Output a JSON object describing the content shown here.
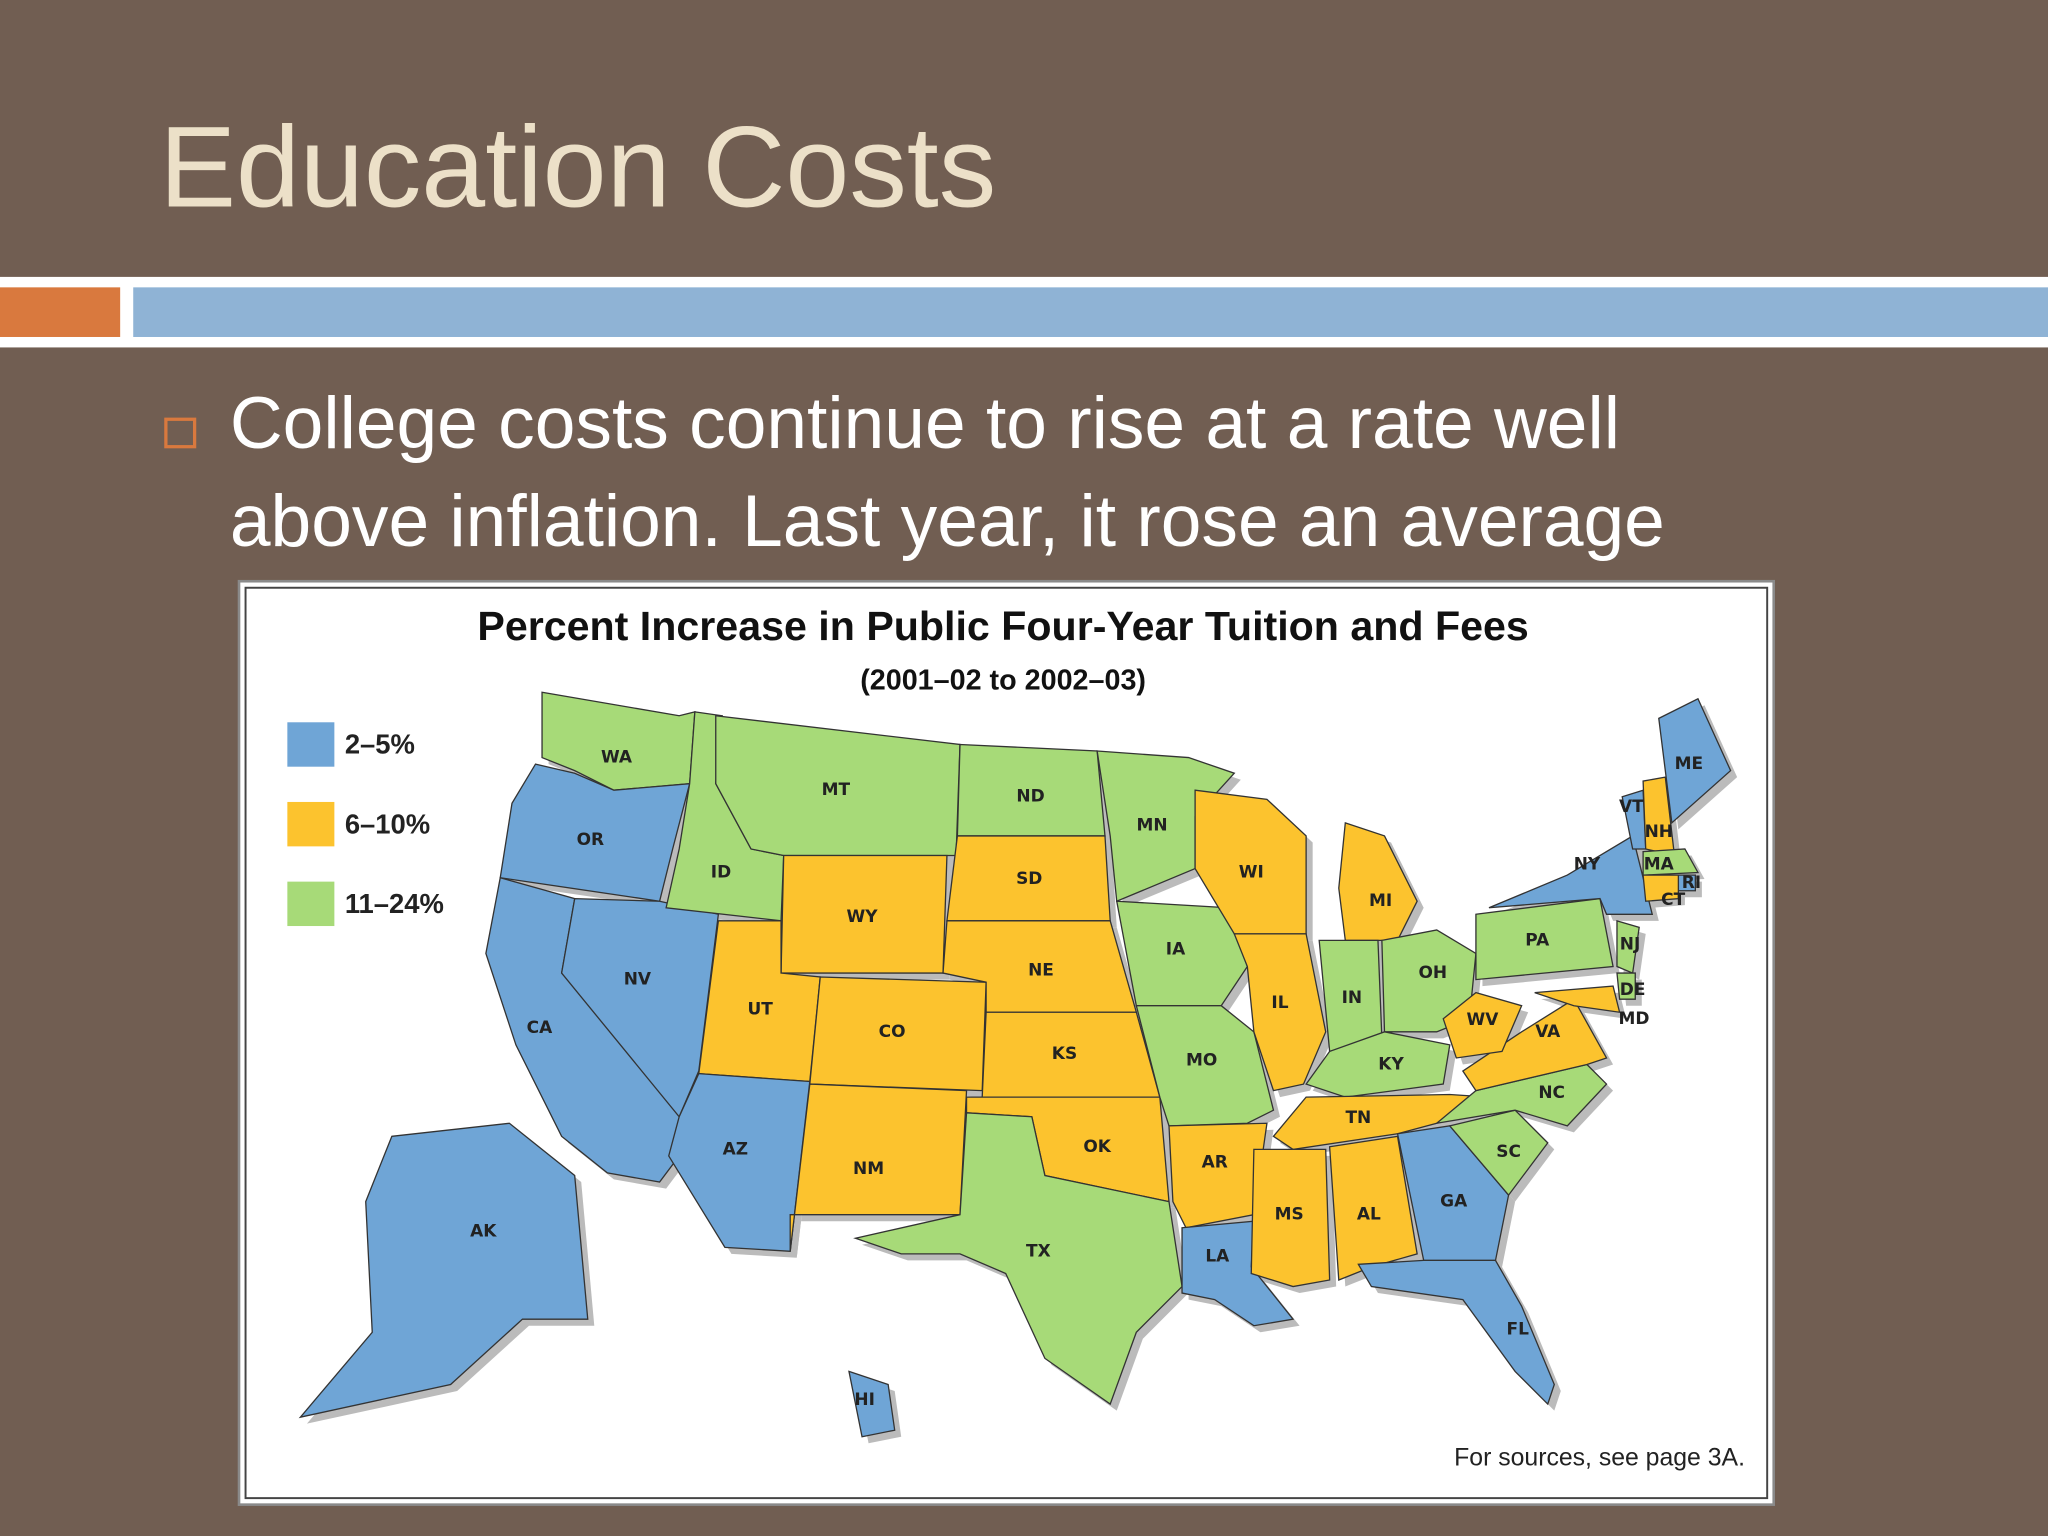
{
  "slide": {
    "title": "Education Costs",
    "bullet_lines": [
      "College costs continue to rise at a rate well",
      "above inflation.  Last year, it rose an average"
    ]
  },
  "map": {
    "title": "Percent Increase in Public Four-Year Tuition and Fees",
    "subtitle": "(2001–02 to 2002–03)",
    "legend": [
      {
        "label": "2–5%",
        "color": "#6fa5d6"
      },
      {
        "label": "6–10%",
        "color": "#fcc32e"
      },
      {
        "label": "11–24%",
        "color": "#a7da78"
      }
    ],
    "states": [
      {
        "label": "WA",
        "range": "11–24%"
      },
      {
        "label": "OR",
        "range": "2–5%"
      },
      {
        "label": "CA",
        "range": "2–5%"
      },
      {
        "label": "NV",
        "range": "2–5%"
      },
      {
        "label": "ID",
        "range": "11–24%"
      },
      {
        "label": "MT",
        "range": "11–24%"
      },
      {
        "label": "WY",
        "range": "6–10%"
      },
      {
        "label": "UT",
        "range": "6–10%"
      },
      {
        "label": "CO",
        "range": "6–10%"
      },
      {
        "label": "AZ",
        "range": "2–5%"
      },
      {
        "label": "NM",
        "range": "6–10%"
      },
      {
        "label": "ND",
        "range": "11–24%"
      },
      {
        "label": "SD",
        "range": "6–10%"
      },
      {
        "label": "NE",
        "range": "6–10%"
      },
      {
        "label": "KS",
        "range": "6–10%"
      },
      {
        "label": "OK",
        "range": "6–10%"
      },
      {
        "label": "TX",
        "range": "11–24%"
      },
      {
        "label": "MN",
        "range": "11–24%"
      },
      {
        "label": "IA",
        "range": "11–24%"
      },
      {
        "label": "MO",
        "range": "11–24%"
      },
      {
        "label": "AR",
        "range": "6–10%"
      },
      {
        "label": "LA",
        "range": "2–5%"
      },
      {
        "label": "WI",
        "range": "6–10%"
      },
      {
        "label": "IL",
        "range": "6–10%"
      },
      {
        "label": "MI",
        "range": "6–10%"
      },
      {
        "label": "IN",
        "range": "11–24%"
      },
      {
        "label": "OH",
        "range": "11–24%"
      },
      {
        "label": "KY",
        "range": "11–24%"
      },
      {
        "label": "TN",
        "range": "6–10%"
      },
      {
        "label": "MS",
        "range": "6–10%"
      },
      {
        "label": "AL",
        "range": "6–10%"
      },
      {
        "label": "GA",
        "range": "2–5%"
      },
      {
        "label": "FL",
        "range": "2–5%"
      },
      {
        "label": "SC",
        "range": "11–24%"
      },
      {
        "label": "NC",
        "range": "11–24%"
      },
      {
        "label": "VA",
        "range": "6–10%"
      },
      {
        "label": "WV",
        "range": "6–10%"
      },
      {
        "label": "PA",
        "range": "11–24%"
      },
      {
        "label": "NY",
        "range": "2–5%"
      },
      {
        "label": "VT",
        "range": "2–5%"
      },
      {
        "label": "NH",
        "range": "6–10%"
      },
      {
        "label": "ME",
        "range": "2–5%"
      },
      {
        "label": "MA",
        "range": "11–24%"
      },
      {
        "label": "RI",
        "range": "2–5%"
      },
      {
        "label": "CT",
        "range": "6–10%"
      },
      {
        "label": "NJ",
        "range": "11–24%"
      },
      {
        "label": "DE",
        "range": "11–24%"
      },
      {
        "label": "MD",
        "range": "6–10%"
      },
      {
        "label": "AK",
        "range": "2–5%"
      },
      {
        "label": "HI",
        "range": "2–5%"
      }
    ],
    "footnote": "For sources, see page 3A."
  }
}
